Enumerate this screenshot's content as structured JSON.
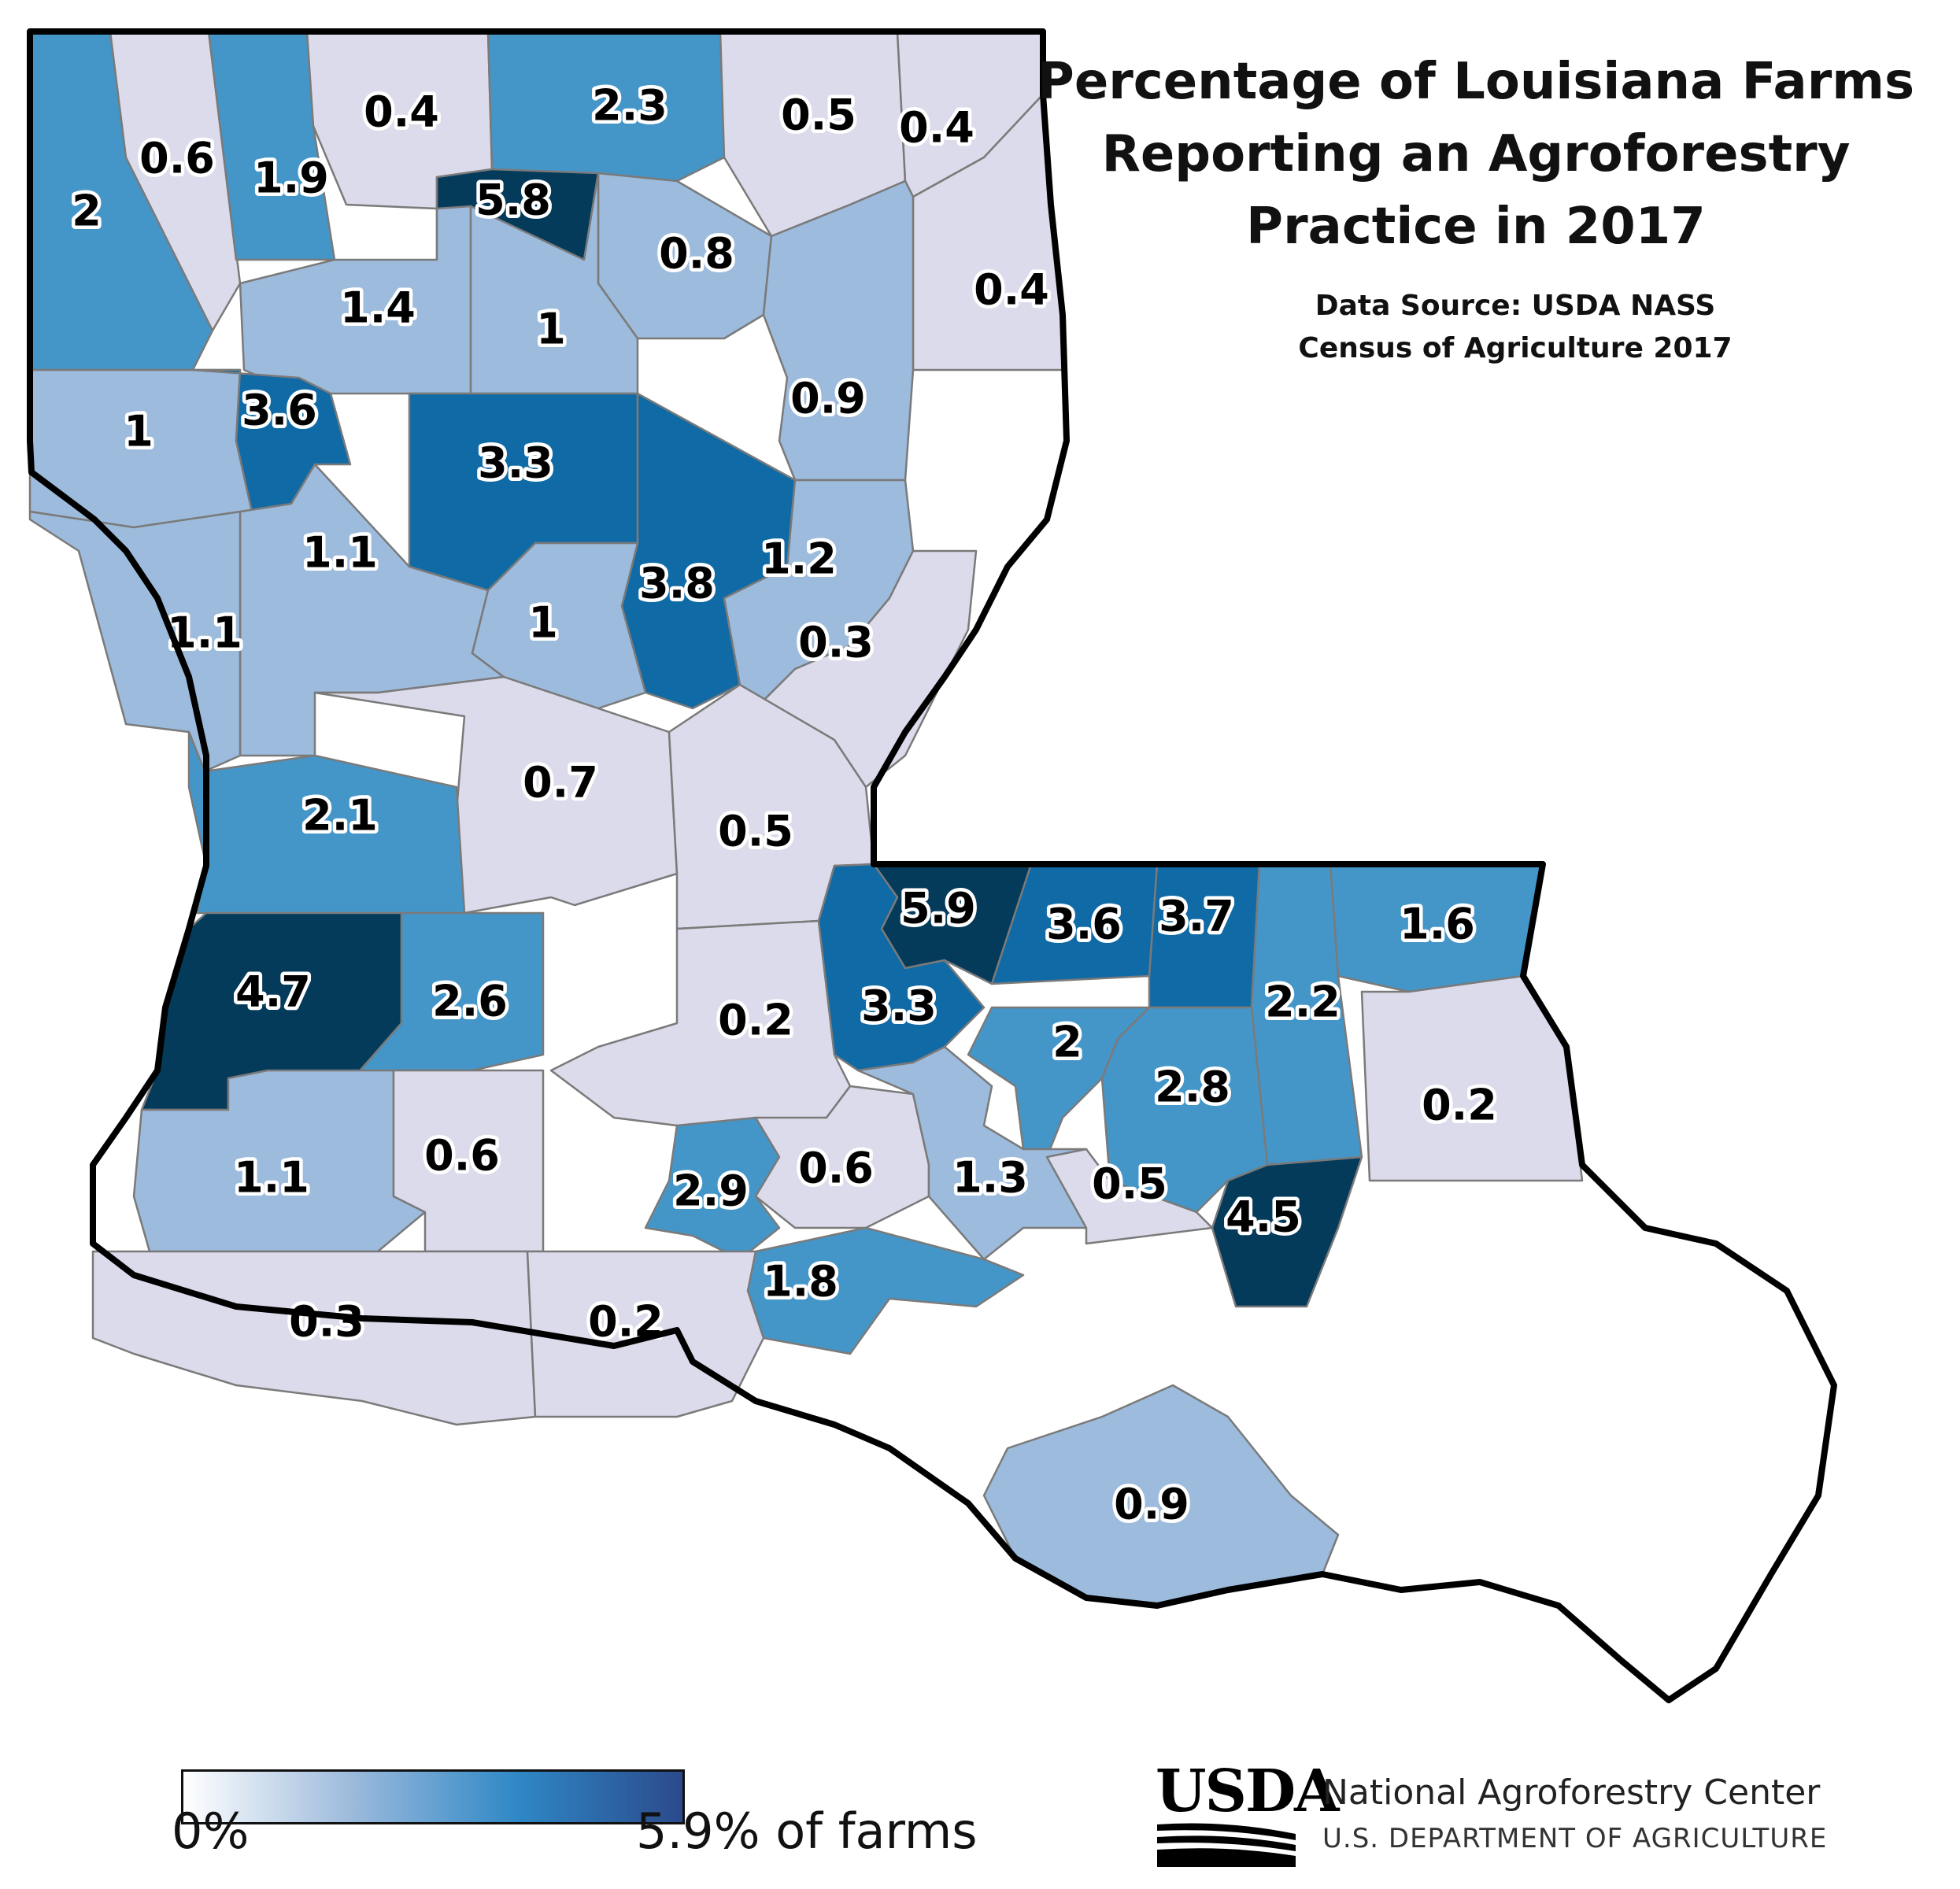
{
  "title_lines": [
    "Percentage of Louisiana Farms",
    "Reporting an Agroforestry",
    "Practice in 2017"
  ],
  "source_lines": [
    "Data Source: USDA NASS",
    "Census of Agriculture 2017"
  ],
  "legend": {
    "min_label": "0%",
    "max_label": "5.9% of farms",
    "min_value": 0,
    "max_value": 5.9,
    "colors": [
      "#ffffff",
      "#9dbbdc",
      "#2f88c6",
      "#2b4a8c"
    ]
  },
  "logo": {
    "wordmark": "USDA",
    "agency": "National Agroforestry Center",
    "department": "U.S. DEPARTMENT OF AGRICULTURE"
  },
  "colors": {
    "very_low": "#dcdbeb",
    "low": "#9dbbdc",
    "medium": "#4596c8",
    "high": "#0f6aa5",
    "very_high": "#043a5a",
    "no_data": "#ffffff",
    "border": "#7a7a7a",
    "outline": "#000000"
  },
  "parishes": [
    {
      "value": 2
    },
    {
      "value": 0.6
    },
    {
      "value": 1.9
    },
    {
      "value": 0.4
    },
    {
      "value": 5.8
    },
    {
      "value": 2.3
    },
    {
      "value": 0.5
    },
    {
      "value": 0.4
    },
    {
      "value": 0.8
    },
    {
      "value": 1.4
    },
    {
      "value": 1
    },
    {
      "value": 0.4
    },
    {
      "value": 1
    },
    {
      "value": 3.6
    },
    {
      "value": 0.9
    },
    {
      "value": 3.3
    },
    {
      "value": 1.1
    },
    {
      "value": 3.8
    },
    {
      "value": 1.2
    },
    {
      "value": 1.1
    },
    {
      "value": 1
    },
    {
      "value": 0.3
    },
    {
      "value": 0.7
    },
    {
      "value": 2.1
    },
    {
      "value": 0.5
    },
    {
      "value": 5.9
    },
    {
      "value": 3.6
    },
    {
      "value": 3.7
    },
    {
      "value": 1.6
    },
    {
      "value": 4.7
    },
    {
      "value": 2.6
    },
    {
      "value": 0.2
    },
    {
      "value": 3.3
    },
    {
      "value": 2
    },
    {
      "value": 2.2
    },
    {
      "value": 2.8
    },
    {
      "value": 0.2
    },
    {
      "value": 1.1
    },
    {
      "value": 0.6
    },
    {
      "value": 2.9
    },
    {
      "value": 0.6
    },
    {
      "value": 1.3
    },
    {
      "value": 0.5
    },
    {
      "value": 4.5
    },
    {
      "value": 1.8
    },
    {
      "value": 0.3
    },
    {
      "value": 0.2
    },
    {
      "value": 0.9
    }
  ]
}
